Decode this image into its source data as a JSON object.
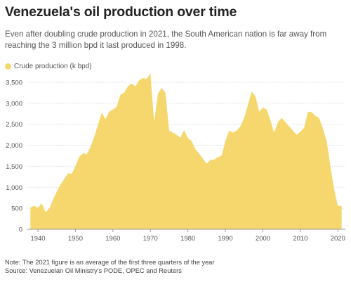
{
  "header": {
    "title": "Venezuela's oil production over time",
    "subtitle": "Even after doubling crude production in 2021, the South American nation is far away from reaching the 3 million bpd it last produced in 1998."
  },
  "footer": {
    "note": "Note: The 2021 figure is an average of the first three quarters of the year",
    "source": "Source: Venezuelan Oil Ministry's PODE, OPEC and Reuters"
  },
  "colors": {
    "fill": "#f5d76e",
    "grid": "#dcdcdc",
    "text": "#555555"
  },
  "chart_data": {
    "type": "area",
    "title": "Venezuela's oil production over time",
    "xlabel": "",
    "ylabel": "",
    "xlim": [
      1937,
      2022
    ],
    "ylim": [
      0,
      3700
    ],
    "grid": true,
    "legend_placement": "top-left",
    "x_ticks": [
      "1940",
      "1950",
      "1960",
      "1970",
      "1980",
      "1990",
      "2000",
      "2010",
      "2020"
    ],
    "y_ticks": [
      "0",
      "500",
      "1,000",
      "1,500",
      "2,000",
      "2,500",
      "3,000",
      "3,500"
    ],
    "series": [
      {
        "name": "Crude production (k bpd)",
        "x": [
          1938,
          1939,
          1940,
          1941,
          1942,
          1943,
          1944,
          1945,
          1946,
          1947,
          1948,
          1949,
          1950,
          1951,
          1952,
          1953,
          1954,
          1955,
          1956,
          1957,
          1958,
          1959,
          1960,
          1961,
          1962,
          1963,
          1964,
          1965,
          1966,
          1967,
          1968,
          1969,
          1970,
          1971,
          1972,
          1973,
          1974,
          1975,
          1976,
          1977,
          1978,
          1979,
          1980,
          1981,
          1982,
          1983,
          1984,
          1985,
          1986,
          1987,
          1988,
          1989,
          1990,
          1991,
          1992,
          1993,
          1994,
          1995,
          1996,
          1997,
          1998,
          1999,
          2000,
          2001,
          2002,
          2003,
          2004,
          2005,
          2006,
          2007,
          2008,
          2009,
          2010,
          2011,
          2012,
          2013,
          2014,
          2015,
          2016,
          2017,
          2018,
          2019,
          2020,
          2021
        ],
        "values": [
          520,
          560,
          510,
          620,
          410,
          490,
          700,
          890,
          1060,
          1190,
          1330,
          1320,
          1500,
          1720,
          1810,
          1780,
          1950,
          2200,
          2480,
          2780,
          2620,
          2800,
          2850,
          2920,
          3200,
          3250,
          3400,
          3470,
          3400,
          3550,
          3600,
          3580,
          3710,
          2550,
          3220,
          3370,
          3250,
          2350,
          2300,
          2250,
          2180,
          2360,
          2170,
          2100,
          1900,
          1800,
          1680,
          1560,
          1650,
          1660,
          1720,
          1750,
          2100,
          2350,
          2300,
          2350,
          2450,
          2650,
          2950,
          3280,
          3170,
          2800,
          2900,
          2850,
          2600,
          2300,
          2550,
          2650,
          2550,
          2450,
          2350,
          2250,
          2320,
          2420,
          2800,
          2790,
          2700,
          2650,
          2400,
          2100,
          1500,
          950,
          550,
          560
        ]
      }
    ]
  }
}
